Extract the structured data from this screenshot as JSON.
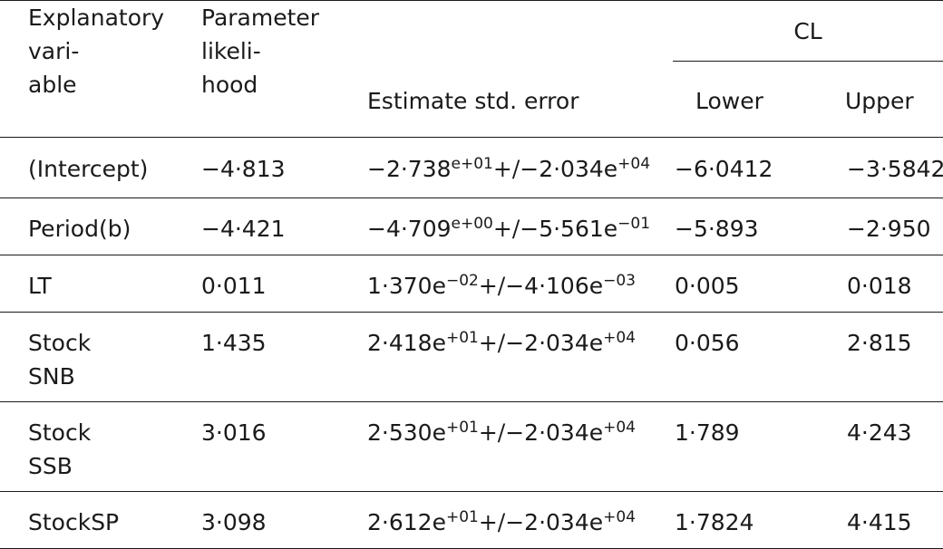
{
  "headers": {
    "explanatory_line1": "Explanatory",
    "explanatory_line2": "vari-",
    "explanatory_line3": "able",
    "param_line1": "Parameter",
    "param_line2": "likeli-",
    "param_line3": "hood",
    "estimate": "Estimate std. error",
    "cl": "CL",
    "lower": "Lower",
    "upper": "Upper"
  },
  "rows": [
    {
      "var_lines": [
        "(Intercept)"
      ],
      "param": "−4·813",
      "est_mant": "−2·738",
      "est_exp": "e+01",
      "se_mant": "−2·034e",
      "se_exp": "+04",
      "lower": "−6·0412",
      "upper": "−3·5842"
    },
    {
      "var_lines": [
        "Period(b)"
      ],
      "param": "−4·421",
      "est_mant": "−4·709",
      "est_exp": "e+00",
      "se_mant": "−5·561e",
      "se_exp": "−01",
      "lower": "−5·893",
      "upper": "−2·950"
    },
    {
      "var_lines": [
        "LT"
      ],
      "param": "0·011",
      "est_mant": "1·370e",
      "est_exp": "−02",
      "se_mant": "−4·106e",
      "se_exp": "−03",
      "lower": "0·005",
      "upper": "0·018"
    },
    {
      "var_lines": [
        "Stock",
        "SNB"
      ],
      "param": "1·435",
      "est_mant": "2·418e",
      "est_exp": "+01",
      "se_mant": "−2·034e",
      "se_exp": "+04",
      "lower": "0·056",
      "upper": "2·815"
    },
    {
      "var_lines": [
        "Stock",
        "SSB"
      ],
      "param": "3·016",
      "est_mant": "2·530e",
      "est_exp": "+01",
      "se_mant": "−2·034e",
      "se_exp": "+04",
      "lower": "1·789",
      "upper": "4·243"
    },
    {
      "var_lines": [
        "StockSP"
      ],
      "param": "3·098",
      "est_mant": "2·612e",
      "est_exp": "+01",
      "se_mant": "−2·034e",
      "se_exp": "+04",
      "lower": "1·7824",
      "upper": "4·415"
    }
  ],
  "plusminus": "+/"
}
